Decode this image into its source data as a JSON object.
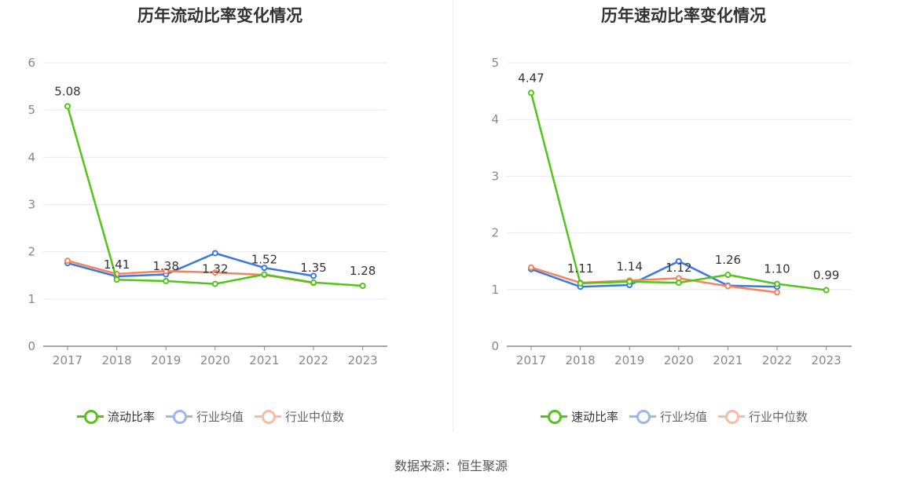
{
  "source_text": "数据来源：恒生聚源",
  "chart_data": [
    {
      "type": "line",
      "title": "历年流动比率变化情况",
      "categories": [
        "2017",
        "2018",
        "2019",
        "2020",
        "2021",
        "2022",
        "2023"
      ],
      "ylim": [
        0,
        6
      ],
      "yticks": [
        "0",
        "1",
        "2",
        "3",
        "4",
        "5",
        "6"
      ],
      "grid": true,
      "legend_position": "bottom",
      "series": [
        {
          "name": "流动比率",
          "color": "#52c41a",
          "values": [
            5.08,
            1.41,
            1.38,
            1.32,
            1.52,
            1.35,
            1.28
          ],
          "labels": [
            "5.08",
            "1.41",
            "1.38",
            "1.32",
            "1.52",
            "1.35",
            "1.28"
          ]
        },
        {
          "name": "行业均值",
          "color": "#3a78e0",
          "values": [
            1.76,
            1.48,
            1.52,
            1.97,
            1.66,
            1.49,
            null
          ]
        },
        {
          "name": "行业中位数",
          "color": "#f5845c",
          "values": [
            1.81,
            1.53,
            1.59,
            1.56,
            1.51,
            1.34,
            null
          ]
        }
      ]
    },
    {
      "type": "line",
      "title": "历年速动比率变化情况",
      "categories": [
        "2017",
        "2018",
        "2019",
        "2020",
        "2021",
        "2022",
        "2023"
      ],
      "ylim": [
        0,
        5
      ],
      "yticks": [
        "0",
        "1",
        "2",
        "3",
        "4",
        "5"
      ],
      "grid": true,
      "legend_position": "bottom",
      "series": [
        {
          "name": "速动比率",
          "color": "#52c41a",
          "values": [
            4.47,
            1.11,
            1.14,
            1.12,
            1.26,
            1.1,
            0.99
          ],
          "labels": [
            "4.47",
            "1.11",
            "1.14",
            "1.12",
            "1.26",
            "1.10",
            "0.99"
          ]
        },
        {
          "name": "行业均值",
          "color": "#3a78e0",
          "values": [
            1.36,
            1.05,
            1.08,
            1.5,
            1.07,
            1.05,
            null
          ]
        },
        {
          "name": "行业中位数",
          "color": "#f5845c",
          "values": [
            1.39,
            1.12,
            1.16,
            1.2,
            1.06,
            0.95,
            null
          ]
        }
      ]
    }
  ]
}
